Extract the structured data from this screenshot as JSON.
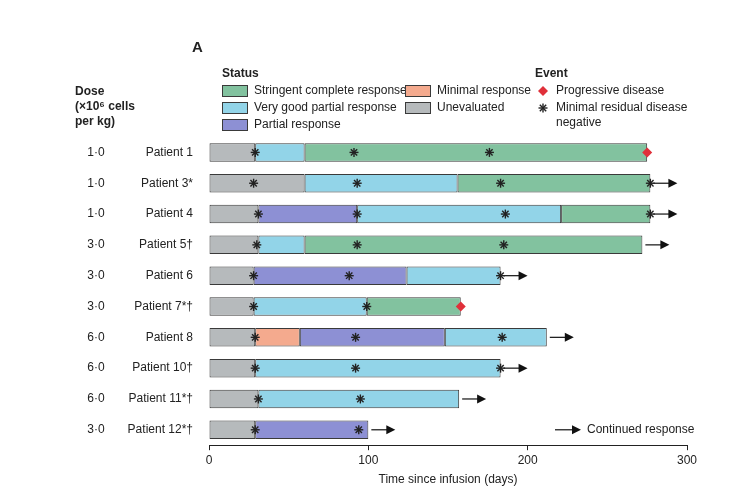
{
  "chart_data": {
    "type": "bar",
    "orientation": "horizontal",
    "stacked": true,
    "grid": false,
    "panel_label": "A",
    "x_label": "Time since infusion (days)",
    "xlim": [
      0,
      300
    ],
    "xticks": [
      0,
      100,
      200,
      300
    ],
    "categories": [
      "Patient 1",
      "Patient 3*",
      "Patient 4",
      "Patient 5†",
      "Patient 6",
      "Patient 7*†",
      "Patient 8",
      "Patient 10†",
      "Patient 11*†",
      "Patient 12*†"
    ],
    "dose_header": [
      "Dose",
      "(×10⁶ cells",
      "per kg)"
    ],
    "doses": [
      {
        "value": 1,
        "label": "1·0"
      },
      {
        "value": 1,
        "label": "1·0"
      },
      {
        "value": 1,
        "label": "1·0"
      },
      {
        "value": 3,
        "label": "3·0"
      },
      {
        "value": 3,
        "label": "3·0"
      },
      {
        "value": 3,
        "label": "3·0"
      },
      {
        "value": 6,
        "label": "6·0"
      },
      {
        "value": 6,
        "label": "6·0"
      },
      {
        "value": 6,
        "label": "6·0"
      },
      {
        "value": 3,
        "label": "3·0"
      }
    ],
    "legend_title": "Status",
    "series": [
      {
        "name": "Unevaluated",
        "color": "#b6babc",
        "values": [
          29,
          60,
          31,
          31,
          28,
          28,
          29,
          29,
          31,
          29
        ]
      },
      {
        "name": "Minimal response",
        "color": "#f4aa8e",
        "values": [
          null,
          null,
          null,
          null,
          null,
          null,
          28,
          null,
          null,
          null
        ]
      },
      {
        "name": "Partial response",
        "color": "#8d90d4",
        "values": [
          null,
          null,
          62,
          null,
          96,
          null,
          91,
          null,
          null,
          71
        ]
      },
      {
        "name": "Very good partial response",
        "color": "#92d4e8",
        "values": [
          31,
          96,
          128,
          29,
          59,
          71,
          64,
          154,
          126,
          null
        ]
      },
      {
        "name": "Stringent complete response",
        "color": "#82c29f",
        "values": [
          215,
          121,
          56,
          212,
          null,
          59,
          null,
          null,
          null,
          null
        ]
      }
    ],
    "events_title": "Event",
    "events": [
      {
        "name": "Progressive disease",
        "marker": "diamond",
        "color": "#e0303a",
        "values": [
          275,
          null,
          null,
          null,
          null,
          158,
          null,
          null,
          null,
          null
        ]
      },
      {
        "name": "Minimal residual disease negative",
        "marker": "asterisk",
        "color": "#222222",
        "values": [
          [
            29,
            91,
            176
          ],
          [
            28,
            93,
            183,
            277
          ],
          [
            31,
            93,
            186,
            277
          ],
          [
            30,
            93,
            185
          ],
          [
            28,
            88,
            183
          ],
          [
            28,
            99
          ],
          [
            29,
            92,
            184
          ],
          [
            29,
            92,
            183
          ],
          [
            31,
            95
          ],
          [
            29,
            94
          ]
        ]
      }
    ],
    "continued_response": {
      "name": "Continued response",
      "values": [
        false,
        true,
        true,
        true,
        true,
        false,
        true,
        true,
        true,
        true
      ]
    }
  }
}
